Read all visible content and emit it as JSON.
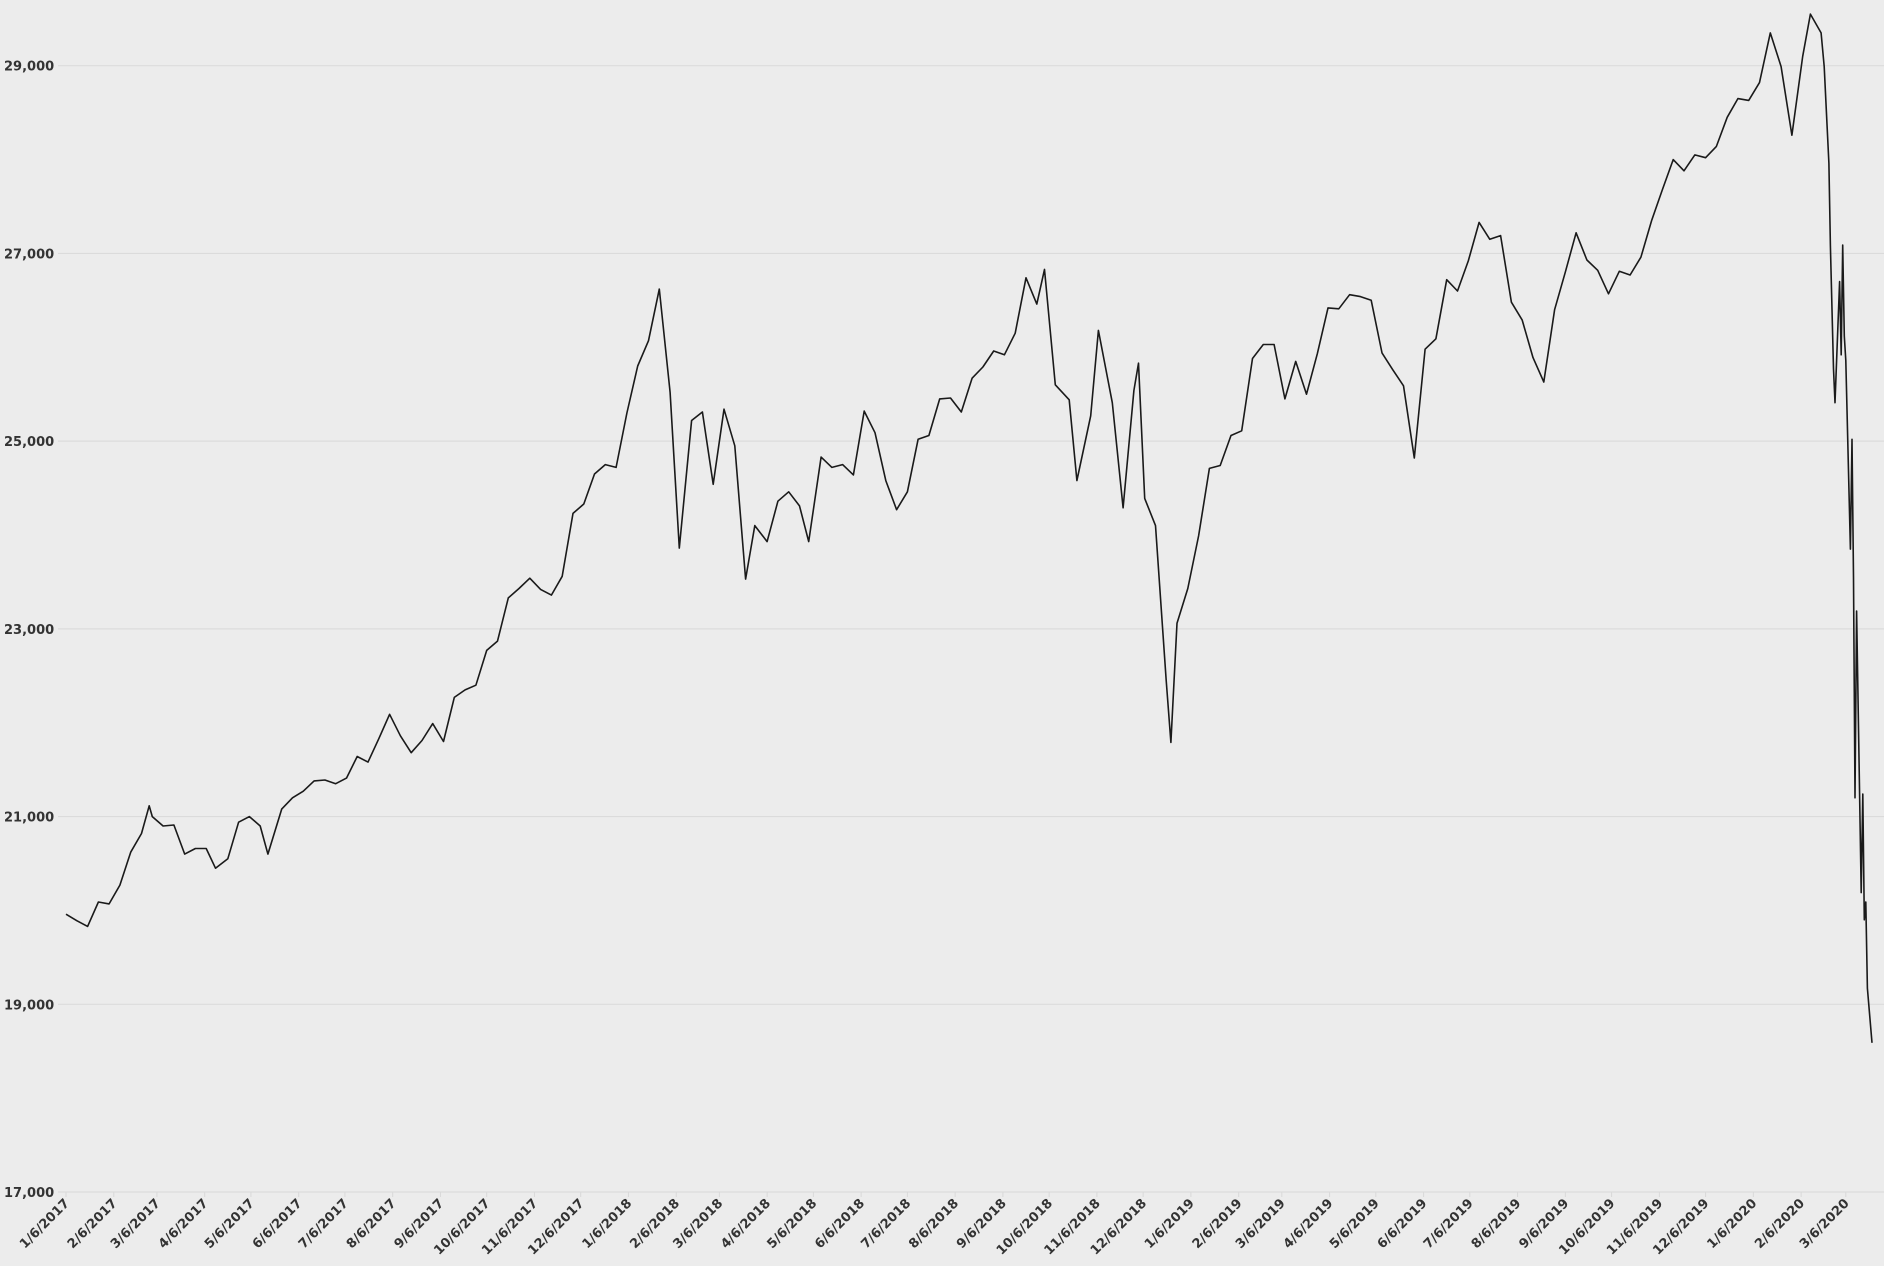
{
  "chart_data": {
    "type": "line",
    "color": "#1a1a1a",
    "grid": true,
    "x": [
      "1/6/2017",
      "1/13/2017",
      "1/20/2017",
      "1/27/2017",
      "2/3/2017",
      "2/10/2017",
      "2/17/2017",
      "2/24/2017",
      "3/1/2017",
      "3/3/2017",
      "3/10/2017",
      "3/17/2017",
      "3/24/2017",
      "3/31/2017",
      "4/7/2017",
      "4/13/2017",
      "4/21/2017",
      "4/28/2017",
      "5/5/2017",
      "5/12/2017",
      "5/17/2017",
      "5/26/2017",
      "6/2/2017",
      "6/9/2017",
      "6/16/2017",
      "6/23/2017",
      "6/30/2017",
      "7/7/2017",
      "7/14/2017",
      "7/21/2017",
      "7/28/2017",
      "8/4/2017",
      "8/11/2017",
      "8/18/2017",
      "8/25/2017",
      "9/1/2017",
      "9/8/2017",
      "9/15/2017",
      "9/22/2017",
      "9/29/2017",
      "10/6/2017",
      "10/13/2017",
      "10/20/2017",
      "10/27/2017",
      "11/3/2017",
      "11/10/2017",
      "11/17/2017",
      "11/24/2017",
      "12/1/2017",
      "12/8/2017",
      "12/15/2017",
      "12/22/2017",
      "12/29/2017",
      "1/5/2018",
      "1/12/2018",
      "1/19/2018",
      "1/26/2018",
      "2/2/2018",
      "2/8/2018",
      "2/16/2018",
      "2/23/2018",
      "3/2/2018",
      "3/9/2018",
      "3/16/2018",
      "3/23/2018",
      "3/29/2018",
      "4/6/2018",
      "4/13/2018",
      "4/20/2018",
      "4/27/2018",
      "5/3/2018",
      "5/11/2018",
      "5/18/2018",
      "5/25/2018",
      "6/1/2018",
      "6/8/2018",
      "6/15/2018",
      "6/22/2018",
      "6/29/2018",
      "7/6/2018",
      "7/13/2018",
      "7/20/2018",
      "7/27/2018",
      "8/3/2018",
      "8/10/2018",
      "8/17/2018",
      "8/24/2018",
      "8/31/2018",
      "9/7/2018",
      "9/14/2018",
      "9/21/2018",
      "9/28/2018",
      "10/3/2018",
      "10/10/2018",
      "10/19/2018",
      "10/24/2018",
      "11/2/2018",
      "11/7/2018",
      "11/16/2018",
      "11/23/2018",
      "11/30/2018",
      "12/3/2018",
      "12/7/2018",
      "12/14/2018",
      "12/21/2018",
      "12/24/2018",
      "12/28/2018",
      "1/4/2019",
      "1/11/2019",
      "1/18/2019",
      "1/25/2019",
      "2/1/2019",
      "2/8/2019",
      "2/15/2019",
      "2/22/2019",
      "3/1/2019",
      "3/8/2019",
      "3/15/2019",
      "3/22/2019",
      "3/29/2019",
      "4/5/2019",
      "4/12/2019",
      "4/19/2019",
      "4/26/2019",
      "5/3/2019",
      "5/10/2019",
      "5/17/2019",
      "5/24/2019",
      "5/31/2019",
      "6/7/2019",
      "6/14/2019",
      "6/21/2019",
      "6/28/2019",
      "7/5/2019",
      "7/12/2019",
      "7/19/2019",
      "7/26/2019",
      "8/2/2019",
      "8/9/2019",
      "8/16/2019",
      "8/23/2019",
      "8/30/2019",
      "9/6/2019",
      "9/13/2019",
      "9/20/2019",
      "9/27/2019",
      "10/4/2019",
      "10/11/2019",
      "10/18/2019",
      "10/25/2019",
      "11/1/2019",
      "11/8/2019",
      "11/15/2019",
      "11/22/2019",
      "11/29/2019",
      "12/6/2019",
      "12/13/2019",
      "12/20/2019",
      "12/27/2019",
      "1/3/2020",
      "1/10/2020",
      "1/17/2020",
      "1/24/2020",
      "1/31/2020",
      "2/7/2020",
      "2/12/2020",
      "2/19/2020",
      "2/21/2020",
      "2/24/2020",
      "2/25/2020",
      "2/27/2020",
      "2/28/2020",
      "3/2/2020",
      "3/3/2020",
      "3/4/2020",
      "3/5/2020",
      "3/6/2020",
      "3/9/2020",
      "3/10/2020",
      "3/11/2020",
      "3/12/2020",
      "3/13/2020",
      "3/16/2020",
      "3/17/2020",
      "3/18/2020",
      "3/19/2020",
      "3/20/2020",
      "3/23/2020"
    ],
    "values": [
      19960,
      19890,
      19830,
      20090,
      20070,
      20270,
      20620,
      20820,
      21115,
      21000,
      20900,
      20910,
      20600,
      20660,
      20660,
      20450,
      20550,
      20940,
      21000,
      20900,
      20600,
      21080,
      21200,
      21270,
      21380,
      21390,
      21350,
      21410,
      21640,
      21580,
      21830,
      22090,
      21860,
      21680,
      21810,
      21990,
      21800,
      22270,
      22350,
      22400,
      22770,
      22870,
      23330,
      23430,
      23540,
      23420,
      23360,
      23560,
      24230,
      24330,
      24650,
      24750,
      24720,
      25300,
      25800,
      26070,
      26620,
      25520,
      23860,
      25220,
      25310,
      24540,
      25340,
      24950,
      23530,
      24100,
      23930,
      24360,
      24460,
      24310,
      23930,
      24830,
      24720,
      24750,
      24640,
      25320,
      25090,
      24580,
      24270,
      24460,
      25020,
      25060,
      25450,
      25460,
      25310,
      25670,
      25790,
      25960,
      25920,
      26150,
      26740,
      26460,
      26830,
      25600,
      25440,
      24580,
      25270,
      26180,
      25410,
      24290,
      25540,
      25830,
      24390,
      24100,
      22450,
      21790,
      23060,
      23430,
      23990,
      24710,
      24740,
      25060,
      25110,
      25880,
      26030,
      26030,
      25450,
      25850,
      25500,
      25930,
      26420,
      26410,
      26560,
      26540,
      26500,
      25940,
      25760,
      25590,
      24820,
      25980,
      26090,
      26720,
      26600,
      26920,
      27330,
      27150,
      27190,
      26480,
      26290,
      25890,
      25630,
      26400,
      26800,
      27220,
      26930,
      26820,
      26570,
      26810,
      26770,
      26960,
      27350,
      27680,
      28000,
      27880,
      28050,
      28020,
      28140,
      28450,
      28650,
      28630,
      28820,
      29350,
      28990,
      28260,
      29100,
      29550,
      29350,
      28990,
      27960,
      27080,
      25770,
      25410,
      26700,
      25920,
      27090,
      26120,
      25860,
      23850,
      25020,
      23550,
      21200,
      23190,
      20190,
      21240,
      19900,
      20090,
      19170,
      18590
    ],
    "xlim": [
      "1/6/2017",
      "3/23/2020"
    ],
    "xticks": [
      "1/6/2017",
      "2/6/2017",
      "3/6/2017",
      "4/6/2017",
      "5/6/2017",
      "6/6/2017",
      "7/6/2017",
      "8/6/2017",
      "9/6/2017",
      "10/6/2017",
      "11/6/2017",
      "12/6/2017",
      "1/6/2018",
      "2/6/2018",
      "3/6/2018",
      "4/6/2018",
      "5/6/2018",
      "6/6/2018",
      "7/6/2018",
      "8/6/2018",
      "9/6/2018",
      "10/6/2018",
      "11/6/2018",
      "12/6/2018",
      "1/6/2019",
      "2/6/2019",
      "3/6/2019",
      "4/6/2019",
      "5/6/2019",
      "6/6/2019",
      "7/6/2019",
      "8/6/2019",
      "9/6/2019",
      "10/6/2019",
      "11/6/2019",
      "12/6/2019",
      "1/6/2020",
      "2/6/2020",
      "3/6/2020"
    ],
    "ylim": [
      17000,
      29700
    ],
    "yticks": [
      {
        "value": 17000,
        "label": "17,000"
      },
      {
        "value": 19000,
        "label": "19,000"
      },
      {
        "value": 21000,
        "label": "21,000"
      },
      {
        "value": 23000,
        "label": "23,000"
      },
      {
        "value": 25000,
        "label": "25,000"
      },
      {
        "value": 27000,
        "label": "27,000"
      },
      {
        "value": 29000,
        "label": "29,000"
      }
    ]
  }
}
